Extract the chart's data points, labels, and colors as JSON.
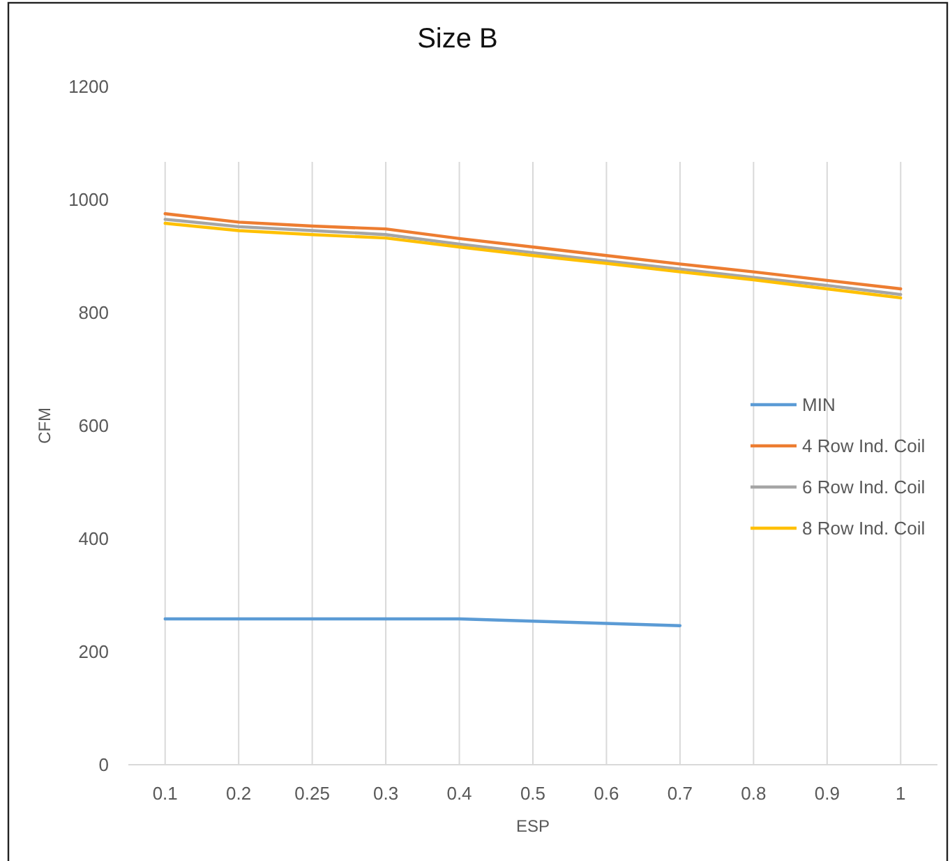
{
  "chart_data": {
    "type": "line",
    "title": "Size B",
    "xlabel": "ESP",
    "ylabel": "CFM",
    "categories": [
      "0.1",
      "0.2",
      "0.25",
      "0.3",
      "0.4",
      "0.5",
      "0.6",
      "0.7",
      "0.8",
      "0.9",
      "1"
    ],
    "ylim": [
      0,
      1200
    ],
    "yticks": [
      0,
      200,
      400,
      600,
      800,
      1000,
      1200
    ],
    "grid": "x",
    "legend": "right",
    "marker": "none",
    "series": [
      {
        "name": "MIN",
        "color": "#5b9bd5",
        "values": [
          258,
          258,
          258,
          258,
          258,
          254,
          250,
          246,
          null,
          null,
          null
        ]
      },
      {
        "name": "4 Row Ind. Coil",
        "color": "#ed7d31",
        "values": [
          975,
          960,
          953,
          948,
          931,
          916,
          901,
          886,
          872,
          857,
          842
        ]
      },
      {
        "name": "6 Row Ind. Coil",
        "color": "#a5a5a5",
        "values": [
          965,
          952,
          945,
          938,
          921,
          906,
          891,
          877,
          862,
          848,
          832
        ]
      },
      {
        "name": "8 Row Ind. Coil",
        "color": "#ffc000",
        "values": [
          958,
          945,
          938,
          932,
          916,
          901,
          887,
          872,
          858,
          842,
          826
        ]
      }
    ]
  }
}
